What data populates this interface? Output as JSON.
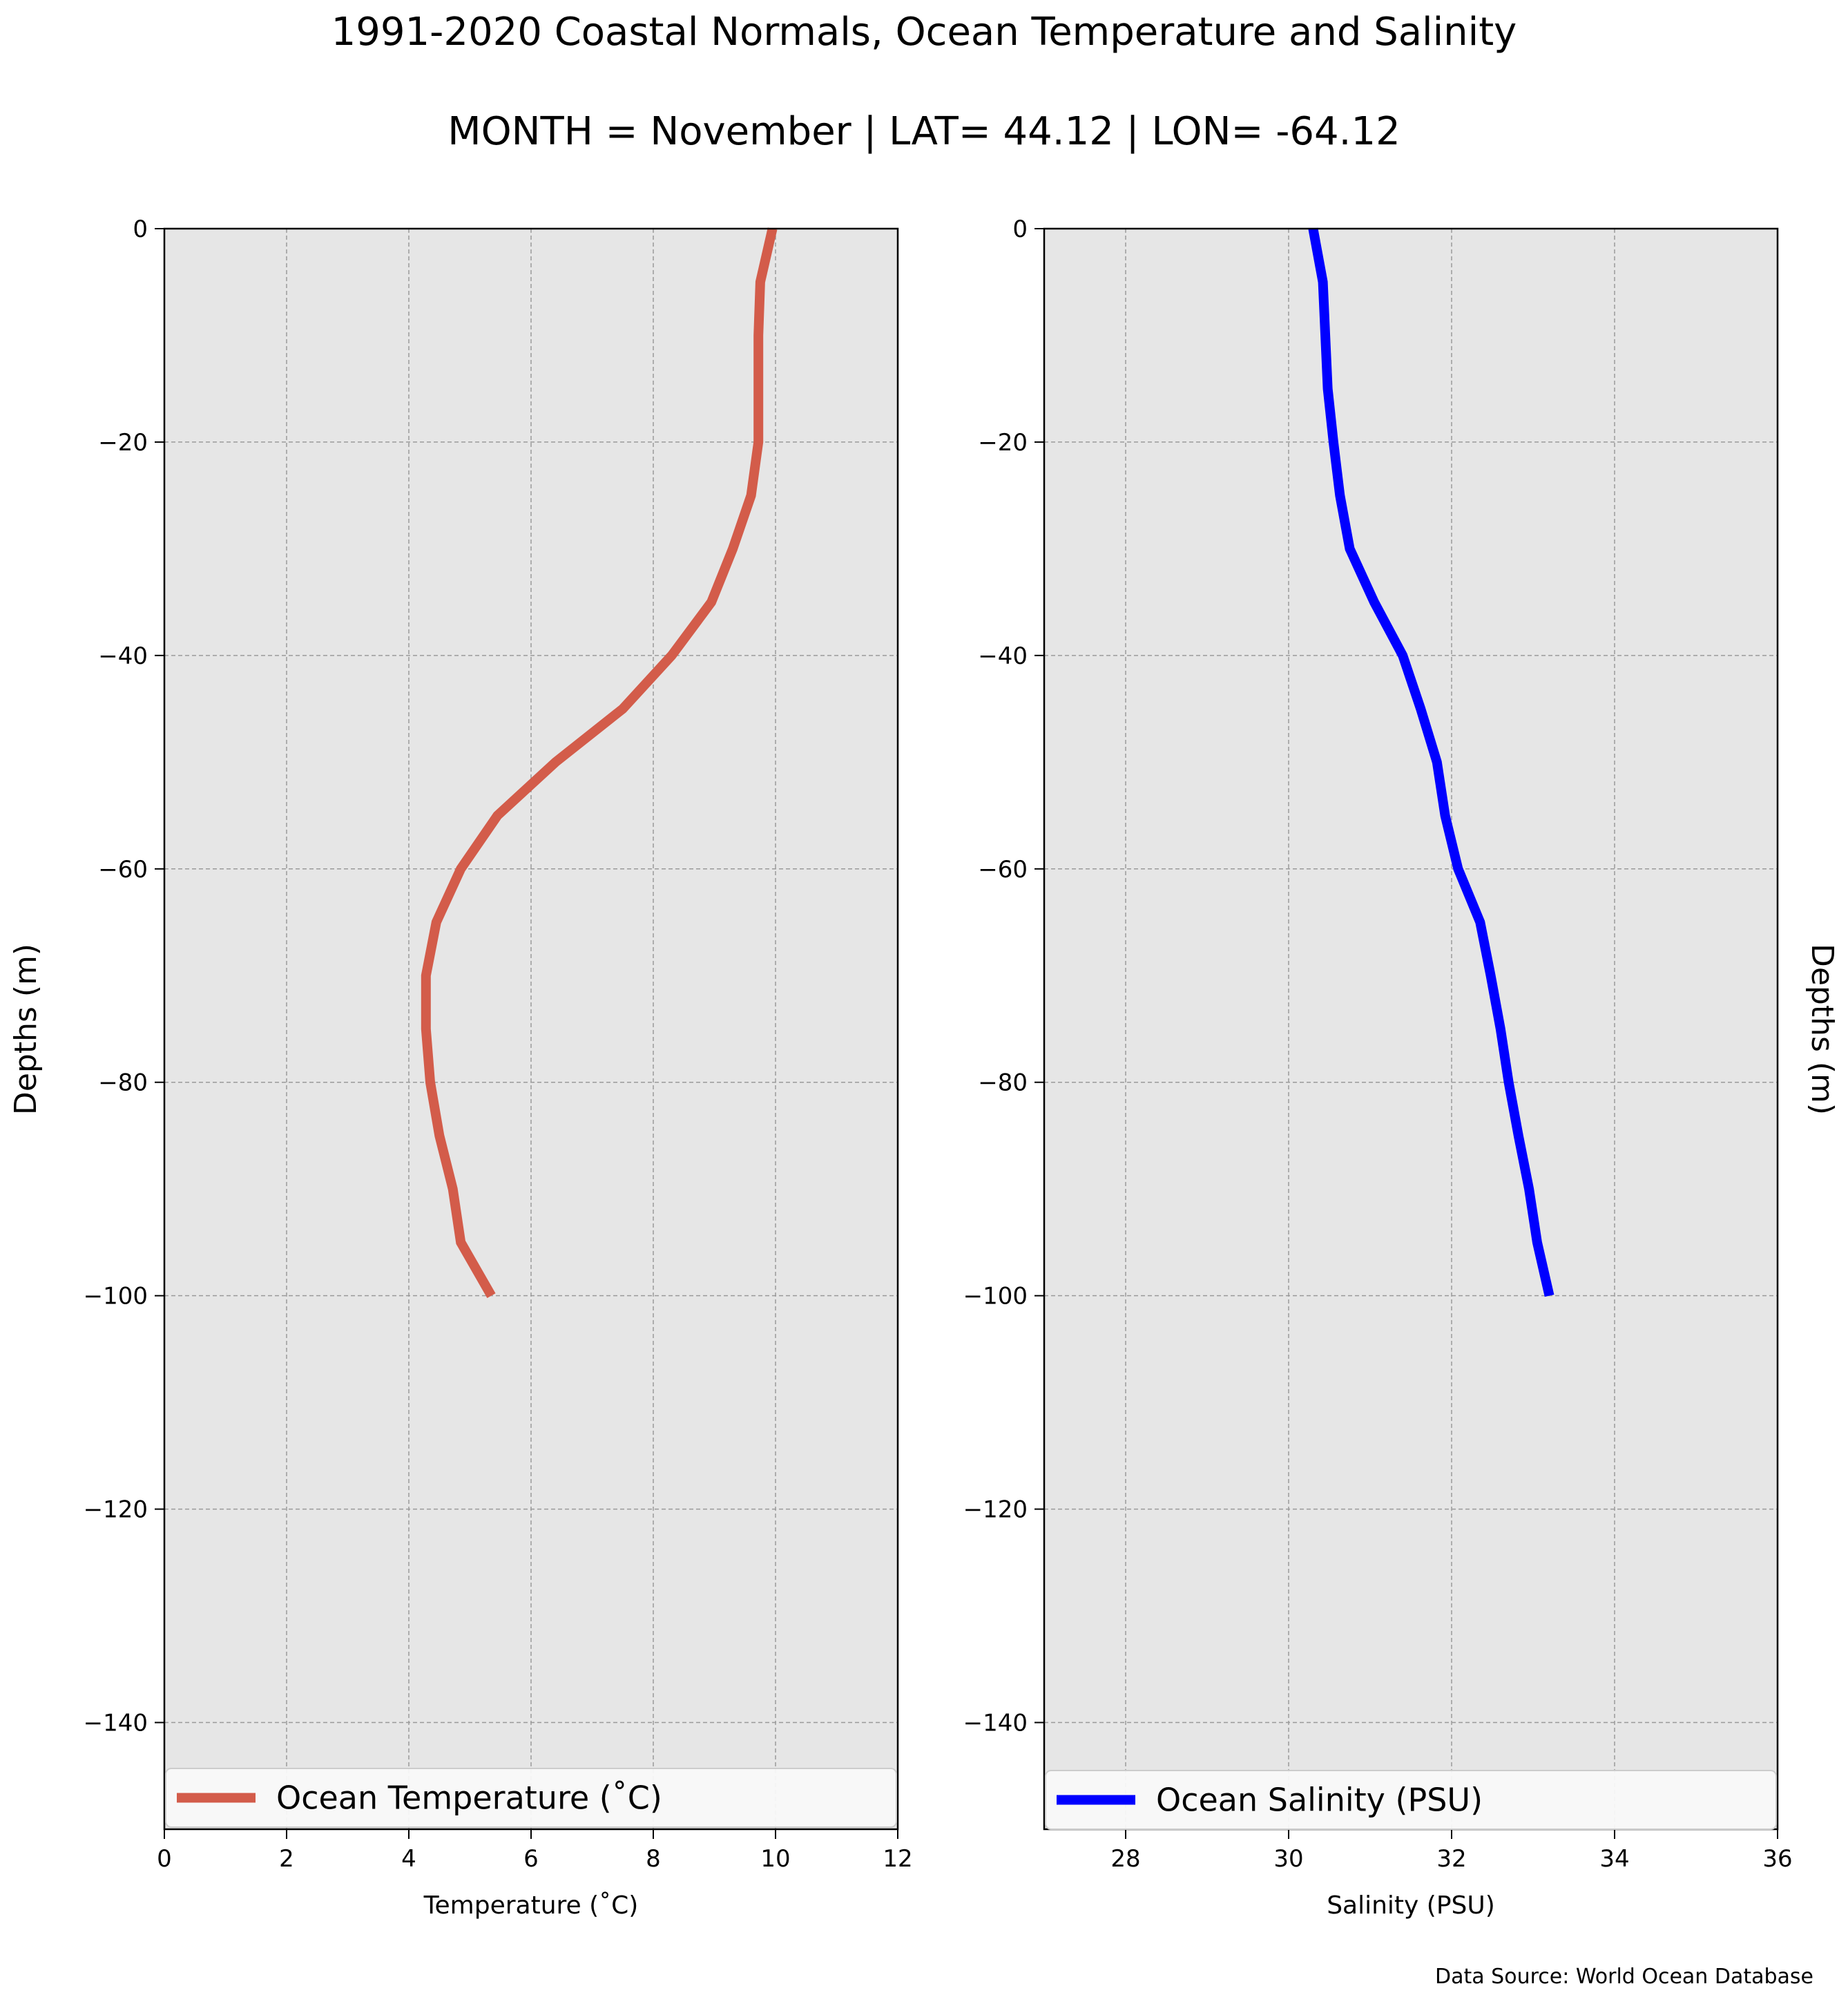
{
  "title": "1991-2020 Coastal Normals, Ocean Temperature and Salinity",
  "subtitle": "MONTH = November | LAT= 44.12 | LON= -64.12",
  "source": "Data Source: World Ocean Database",
  "colors": {
    "panel_bg": "#e6e6e6",
    "grid": "#9a9a9a",
    "temperature_line": "#d35c4a",
    "salinity_line": "#0000ff"
  },
  "chart_data": [
    {
      "type": "line",
      "xlabel": "Temperature ($^\\circ$C)",
      "xlabel_display": "Temperature (˚C)",
      "ylabel": "Depths (m)",
      "ylabel_side": "left",
      "xlim": [
        0,
        12
      ],
      "ylim": [
        -150,
        0
      ],
      "xticks": [
        "0",
        "2",
        "4",
        "6",
        "8",
        "10",
        "12"
      ],
      "yticks": [
        "0",
        "−20",
        "−40",
        "−60",
        "−80",
        "−100",
        "−120",
        "−140"
      ],
      "grid": true,
      "legend": "bottom-center",
      "series": [
        {
          "name": "Ocean Temperature (˚C)",
          "color": "#d35c4a",
          "x": [
            9.95,
            9.75,
            9.72,
            9.72,
            9.72,
            9.6,
            9.3,
            8.95,
            8.3,
            7.5,
            6.4,
            5.45,
            4.85,
            4.45,
            4.28,
            4.28,
            4.35,
            4.5,
            4.72,
            4.85,
            5.35
          ],
          "y": [
            0,
            -5,
            -10,
            -15,
            -20,
            -25,
            -30,
            -35,
            -40,
            -45,
            -50,
            -55,
            -60,
            -65,
            -70,
            -75,
            -80,
            -85,
            -90,
            -95,
            -100
          ]
        }
      ]
    },
    {
      "type": "line",
      "xlabel": "Salinity (PSU)",
      "ylabel": "Depths (m)",
      "ylabel_side": "right",
      "xlim": [
        27,
        36
      ],
      "ylim": [
        -150,
        0
      ],
      "xticks": [
        "28",
        "30",
        "32",
        "34",
        "36"
      ],
      "yticks": [
        "0",
        "−20",
        "−40",
        "−60",
        "−80",
        "−100",
        "−120",
        "−140"
      ],
      "grid": true,
      "legend": "bottom-center",
      "series": [
        {
          "name": "Ocean Salinity (PSU)",
          "color": "#0000ff",
          "x": [
            30.3,
            30.42,
            30.45,
            30.48,
            30.55,
            30.63,
            30.75,
            31.05,
            31.4,
            31.62,
            31.82,
            31.92,
            32.08,
            32.35,
            32.48,
            32.6,
            32.7,
            32.82,
            32.95,
            33.05,
            33.2
          ],
          "y": [
            0,
            -5,
            -10,
            -15,
            -20,
            -25,
            -30,
            -35,
            -40,
            -45,
            -50,
            -55,
            -60,
            -65,
            -70,
            -75,
            -80,
            -85,
            -90,
            -95,
            -100
          ]
        }
      ]
    }
  ]
}
